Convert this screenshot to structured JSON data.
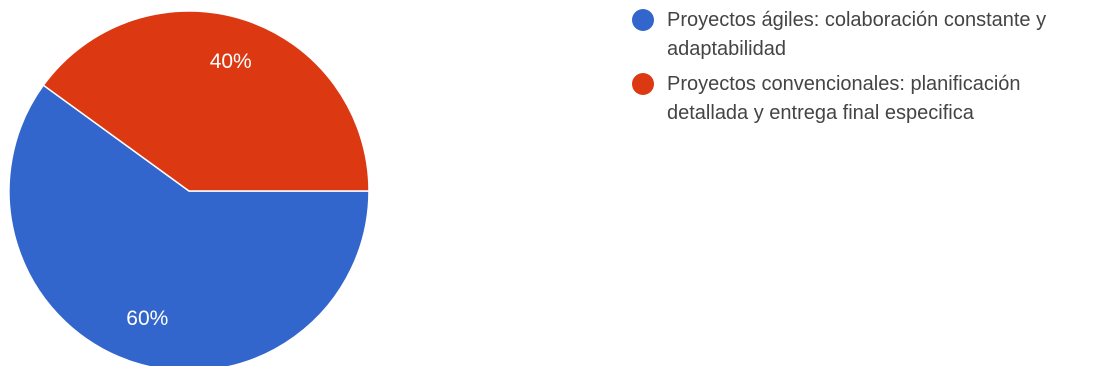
{
  "chart_data": {
    "type": "pie",
    "title": "",
    "slices": [
      {
        "label": "Proyectos ágiles: colaboración constante y adaptabilidad",
        "value": 60,
        "display": "60%",
        "color": "#3366cc"
      },
      {
        "label": "Proyectos convencionales: planificación detallada y entrega final especifica",
        "value": 40,
        "display": "40%",
        "color": "#dc3912"
      }
    ],
    "legend_position": "right",
    "label_color": "#ffffff",
    "start_angle_deg": 0
  }
}
